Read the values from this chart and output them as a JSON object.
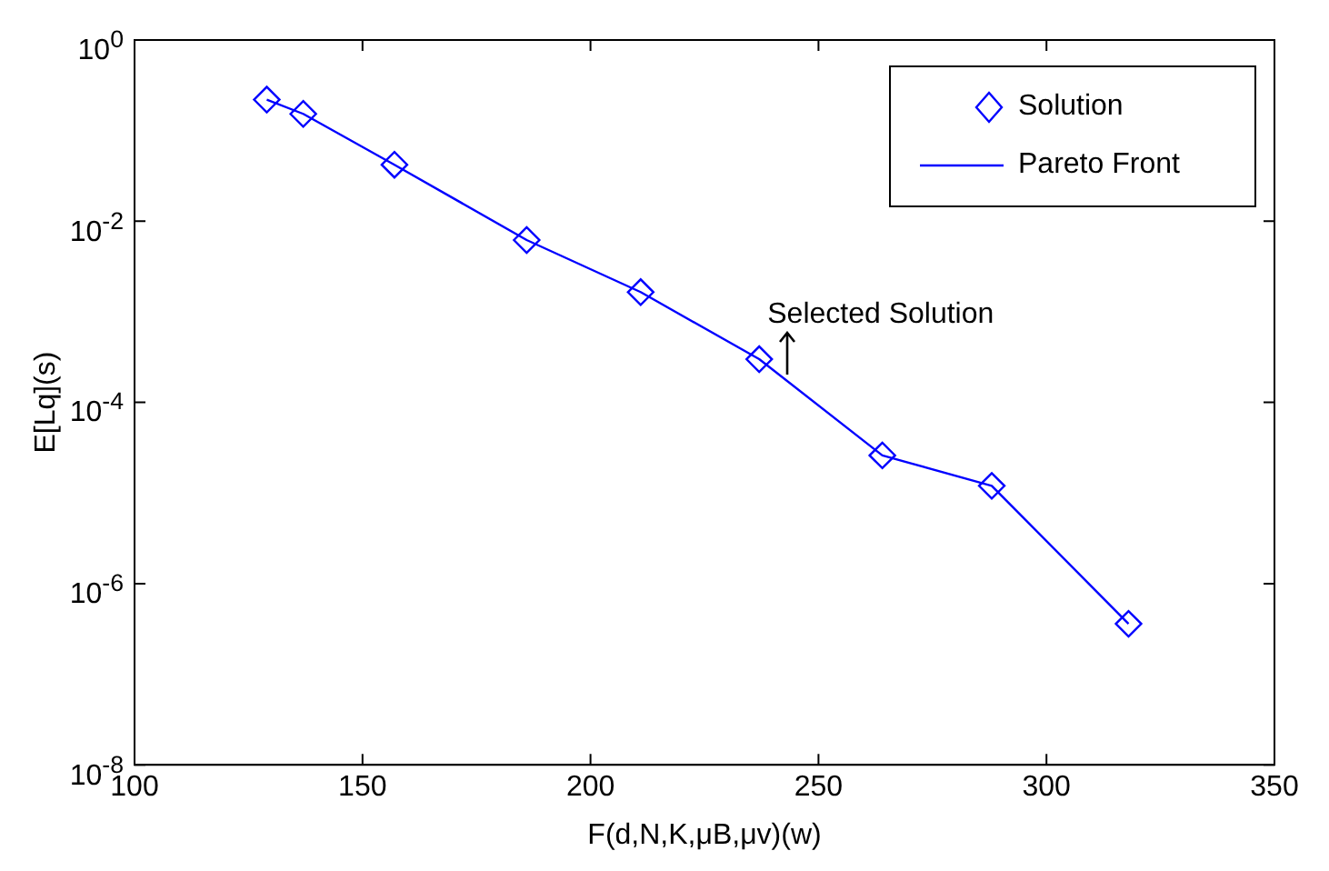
{
  "chart_data": {
    "type": "scatter",
    "xlabel": "F(d,N,K,μB,μv)(w)",
    "ylabel": "E[Lq](s)",
    "log": "y",
    "grid": false,
    "legend": "top right",
    "xlim": [
      100,
      350
    ],
    "xticks": [
      100,
      150,
      200,
      250,
      300,
      350
    ],
    "ylim": [
      1e-08,
      1
    ],
    "yticks": [
      {
        "value": 1e-08,
        "label": "10$^{-8}$"
      },
      {
        "value": 1e-06,
        "label": "10$^{-6}$"
      },
      {
        "value": 0.0001,
        "label": "10$^{-4}$"
      },
      {
        "value": 0.01,
        "label": "10$^{-2}$"
      },
      {
        "value": 1,
        "label": "10$^{0}$"
      }
    ],
    "series": [
      {
        "name": "Solution",
        "marker": "diamond",
        "color": "#0000ff",
        "x": [
          129,
          137,
          157,
          186,
          211,
          237,
          264,
          288,
          318
        ],
        "values": [
          0.22,
          0.153,
          0.042,
          0.0062,
          0.00165,
          0.0003,
          2.6e-05,
          1.2e-05,
          3.6e-07
        ]
      },
      {
        "name": "Pareto Front",
        "type": "line",
        "marker": "none",
        "line_style": "solid",
        "color": "#0000ff",
        "x": [
          129,
          137,
          157,
          186,
          211,
          237,
          264,
          288,
          318
        ],
        "values": [
          0.22,
          0.153,
          0.042,
          0.0062,
          0.00165,
          0.0003,
          2.6e-05,
          1.2e-05,
          3.6e-07
        ]
      }
    ],
    "annotations": [
      {
        "text": "Selected Solution",
        "x": 240,
        "y": 0.0003
      }
    ]
  }
}
